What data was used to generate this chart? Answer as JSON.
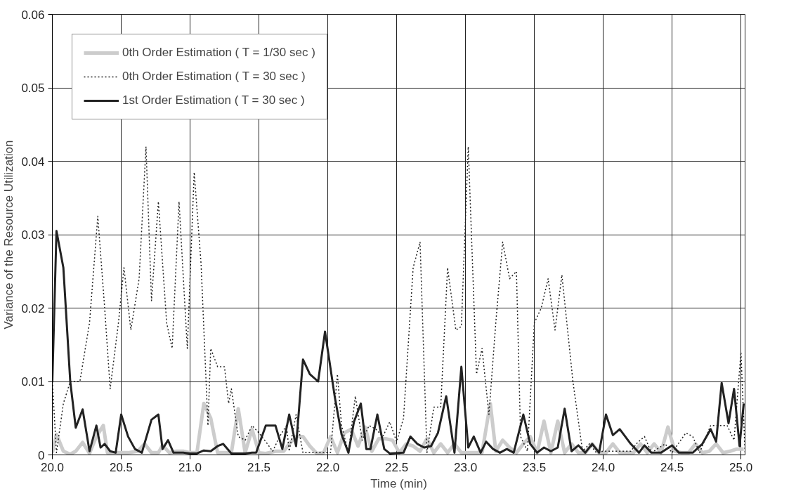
{
  "chart_data": {
    "type": "line",
    "xlabel": "Time (min)",
    "ylabel": "Variance of the Resource Utilization",
    "xlim": [
      20,
      25.03
    ],
    "ylim": [
      0,
      0.06
    ],
    "xticks": [
      {
        "value": 20,
        "label": "20.0"
      },
      20.5,
      {
        "value": 21,
        "label": "21.0"
      },
      21.5,
      {
        "value": 22,
        "label": "22.0"
      },
      22.5,
      {
        "value": 23,
        "label": "23.0"
      },
      23.5,
      {
        "value": 24,
        "label": "24.0"
      },
      24.5,
      {
        "value": 25,
        "label": "25.0"
      }
    ],
    "yticks": [
      0,
      0.01,
      0.02,
      0.03,
      0.04,
      0.05,
      0.06
    ],
    "grid": true,
    "legend": "top left",
    "marker": "none",
    "series": [
      {
        "name": "0th Order Estimation ( T = 1/30 sec )",
        "color": "#cccccc",
        "line_style": "solid",
        "x": [
          20.0,
          20.03,
          20.08,
          20.13,
          20.17,
          20.22,
          20.27,
          20.32,
          20.37,
          20.4,
          20.45,
          20.5,
          20.55,
          20.62,
          20.67,
          20.72,
          20.77,
          20.8,
          20.85,
          20.9,
          20.95,
          21.0,
          21.05,
          21.1,
          21.15,
          21.2,
          21.25,
          21.3,
          21.35,
          21.4,
          21.45,
          21.5,
          21.55,
          21.62,
          21.68,
          21.72,
          21.77,
          21.82,
          21.87,
          21.92,
          21.97,
          22.02,
          22.07,
          22.12,
          22.17,
          22.22,
          22.27,
          22.32,
          22.37,
          22.42,
          22.47,
          22.52,
          22.57,
          22.62,
          22.67,
          22.72,
          22.77,
          22.82,
          22.87,
          22.92,
          22.97,
          23.02,
          23.07,
          23.12,
          23.18,
          23.22,
          23.27,
          23.32,
          23.37,
          23.42,
          23.47,
          23.52,
          23.57,
          23.62,
          23.67,
          23.72,
          23.77,
          23.82,
          23.87,
          23.92,
          23.97,
          24.02,
          24.07,
          24.12,
          24.17,
          24.22,
          24.27,
          24.32,
          24.37,
          24.42,
          24.47,
          24.52,
          24.57,
          24.62,
          24.67,
          24.72,
          24.77,
          24.82,
          24.87,
          24.92,
          24.97,
          25.02
        ],
        "values": [
          0.0003,
          0.0028,
          0.0005,
          0.0001,
          0.0005,
          0.0017,
          0.0002,
          0.0025,
          0.004,
          0.0003,
          0.0003,
          0.0003,
          0.0003,
          0.0005,
          0.0015,
          0.0003,
          0.0003,
          0.0013,
          0.0003,
          0.0005,
          0.0005,
          0.0003,
          0.0003,
          0.007,
          0.005,
          0.0003,
          0.0003,
          0.0003,
          0.0063,
          0.0003,
          0.0035,
          0.0003,
          0.0002,
          0.0005,
          0.0005,
          0.0015,
          0.0025,
          0.0025,
          0.0012,
          0.0002,
          0.0003,
          0.0025,
          0.0003,
          0.003,
          0.0035,
          0.0012,
          0.0038,
          0.0005,
          0.0022,
          0.0022,
          0.002,
          0.0003,
          0.0015,
          0.0012,
          0.0005,
          0.0022,
          0.0003,
          0.0015,
          0.0003,
          0.0015,
          0.0003,
          0.0003,
          0.0003,
          0.0003,
          0.007,
          0.0005,
          0.002,
          0.001,
          0.0003,
          0.0015,
          0.0025,
          0.0003,
          0.0046,
          0.0003,
          0.0046,
          0.0003,
          0.0015,
          0.0003,
          0.0003,
          0.0015,
          0.0003,
          0.0003,
          0.0015,
          0.0003,
          0.0003,
          0.0003,
          0.0015,
          0.0003,
          0.0015,
          0.0003,
          0.0038,
          0.0005,
          0.0003,
          0.0003,
          0.0015,
          0.0003,
          0.0005,
          0.0015,
          0.0003,
          0.0005,
          0.0008,
          0.0008
        ]
      },
      {
        "name": "0th Order Estimation ( T = 30 sec )",
        "color": "#222222",
        "line_style": "dotted",
        "x": [
          20.0,
          20.03,
          20.08,
          20.13,
          20.2,
          20.27,
          20.33,
          20.38,
          20.42,
          20.48,
          20.52,
          20.57,
          20.63,
          20.68,
          20.72,
          20.77,
          20.83,
          20.87,
          20.92,
          20.98,
          21.03,
          21.08,
          21.13,
          21.15,
          21.2,
          21.25,
          21.28,
          21.3,
          21.35,
          21.4,
          21.45,
          21.5,
          21.55,
          21.6,
          21.65,
          21.7,
          21.72,
          21.77,
          21.82,
          21.87,
          21.92,
          21.97,
          22.02,
          22.07,
          22.1,
          22.15,
          22.2,
          22.25,
          22.3,
          22.35,
          22.4,
          22.45,
          22.5,
          22.55,
          22.62,
          22.67,
          22.72,
          22.77,
          22.82,
          22.87,
          22.93,
          22.97,
          23.02,
          23.08,
          23.12,
          23.17,
          23.22,
          23.27,
          23.32,
          23.37,
          23.4,
          23.45,
          23.5,
          23.55,
          23.6,
          23.65,
          23.7,
          23.78,
          23.85,
          23.9,
          23.95,
          24.0,
          24.1,
          24.2,
          24.25,
          24.3,
          24.35,
          24.45,
          24.5,
          24.6,
          24.65,
          24.7,
          24.78,
          24.85,
          24.9,
          24.95,
          25.0,
          25.03
        ],
        "values": [
          0.01,
          0.0003,
          0.007,
          0.01,
          0.01,
          0.018,
          0.0325,
          0.02,
          0.009,
          0.018,
          0.0255,
          0.017,
          0.024,
          0.042,
          0.021,
          0.0345,
          0.018,
          0.0145,
          0.0345,
          0.0145,
          0.0385,
          0.026,
          0.004,
          0.0145,
          0.012,
          0.012,
          0.007,
          0.009,
          0.0025,
          0.002,
          0.004,
          0.003,
          0.0018,
          0.0005,
          0.0025,
          0.004,
          0.0005,
          0.0055,
          0.0003,
          0.0003,
          0.0003,
          0.0003,
          0.0003,
          0.011,
          0.004,
          0.0003,
          0.008,
          0.002,
          0.004,
          0.0035,
          0.0025,
          0.0045,
          0.0018,
          0.005,
          0.0255,
          0.029,
          0.0003,
          0.0065,
          0.0065,
          0.0255,
          0.017,
          0.0175,
          0.042,
          0.011,
          0.0145,
          0.0055,
          0.018,
          0.029,
          0.024,
          0.025,
          0.0025,
          0.0005,
          0.018,
          0.02,
          0.024,
          0.017,
          0.0245,
          0.01,
          0.0005,
          0.0015,
          0.0003,
          0.0005,
          0.0005,
          0.0005,
          0.0017,
          0.0025,
          0.0003,
          0.0015,
          0.0003,
          0.003,
          0.0025,
          0.0003,
          0.004,
          0.004,
          0.004,
          0.002,
          0.014,
          0.0003
        ]
      },
      {
        "name": "1st Order Estimation ( T = 30 sec )",
        "color": "#222222",
        "line_style": "solid",
        "x": [
          20.0,
          20.03,
          20.08,
          20.13,
          20.17,
          20.22,
          20.27,
          20.32,
          20.35,
          20.38,
          20.42,
          20.46,
          20.5,
          20.55,
          20.6,
          20.65,
          20.72,
          20.77,
          20.8,
          20.84,
          20.88,
          20.95,
          21.0,
          21.05,
          21.1,
          21.15,
          21.2,
          21.24,
          21.3,
          21.4,
          21.45,
          21.48,
          21.55,
          21.62,
          21.67,
          21.72,
          21.77,
          21.82,
          21.87,
          21.93,
          21.98,
          22.05,
          22.1,
          22.15,
          22.19,
          22.24,
          22.28,
          22.31,
          22.36,
          22.41,
          22.45,
          22.55,
          22.6,
          22.65,
          22.7,
          22.75,
          22.8,
          22.86,
          22.92,
          22.97,
          23.02,
          23.06,
          23.11,
          23.15,
          23.2,
          23.25,
          23.3,
          23.35,
          23.42,
          23.47,
          23.52,
          23.57,
          23.62,
          23.67,
          23.72,
          23.77,
          23.82,
          23.87,
          23.92,
          23.97,
          24.02,
          24.07,
          24.12,
          24.2,
          24.26,
          24.3,
          24.35,
          24.42,
          24.5,
          24.55,
          24.65,
          24.72,
          24.78,
          24.82,
          24.86,
          24.91,
          24.95,
          24.99,
          25.02
        ],
        "values": [
          0.01,
          0.0305,
          0.0255,
          0.01,
          0.0037,
          0.0062,
          0.0005,
          0.004,
          0.001,
          0.0015,
          0.0005,
          0.0003,
          0.0055,
          0.0025,
          0.0008,
          0.0003,
          0.0048,
          0.0055,
          0.0008,
          0.002,
          0.0003,
          0.0003,
          0.0002,
          0.0002,
          0.0006,
          0.0005,
          0.0012,
          0.0015,
          0.0002,
          0.0002,
          0.0003,
          0.0003,
          0.004,
          0.004,
          0.0008,
          0.0055,
          0.0012,
          0.013,
          0.011,
          0.01,
          0.0168,
          0.008,
          0.0028,
          0.0003,
          0.0045,
          0.007,
          0.0008,
          0.0008,
          0.0055,
          0.0008,
          0.0002,
          0.0003,
          0.0025,
          0.0015,
          0.001,
          0.0012,
          0.003,
          0.008,
          0.0003,
          0.012,
          0.001,
          0.0025,
          0.0003,
          0.0018,
          0.0008,
          0.0003,
          0.0008,
          0.0003,
          0.0055,
          0.0015,
          0.0003,
          0.001,
          0.0005,
          0.001,
          0.0063,
          0.0005,
          0.0013,
          0.0003,
          0.0015,
          0.0003,
          0.0055,
          0.0027,
          0.0035,
          0.0015,
          0.0003,
          0.0013,
          0.0003,
          0.0003,
          0.0013,
          0.0003,
          0.0003,
          0.0015,
          0.0035,
          0.0018,
          0.0098,
          0.0043,
          0.009,
          0.0012,
          0.007
        ]
      }
    ]
  }
}
